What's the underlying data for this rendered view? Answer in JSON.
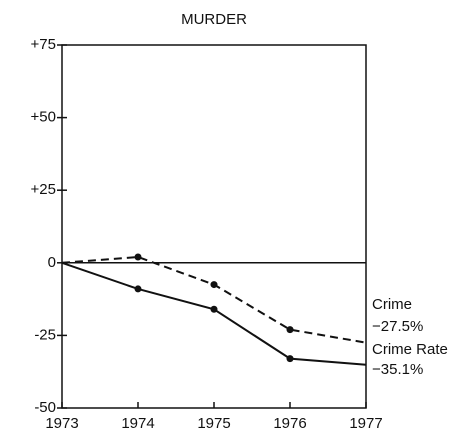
{
  "chart_data": {
    "type": "line",
    "title": "MURDER",
    "x": [
      1973,
      1974,
      1975,
      1976,
      1977
    ],
    "series": [
      {
        "name": "Crime",
        "color": "#111111",
        "dash": true,
        "values": [
          0,
          2,
          -7.5,
          -23,
          -27.5
        ],
        "value_labels": [
          null,
          null,
          null,
          null,
          "−27.5%"
        ]
      },
      {
        "name": "Crime Rate",
        "color": "#111111",
        "dash": false,
        "values": [
          0,
          -9,
          -16,
          -33,
          -35.1
        ],
        "value_labels": [
          null,
          null,
          null,
          null,
          "−35.1%"
        ]
      }
    ],
    "xlim": [
      1973,
      1977
    ],
    "xticks": [
      1973,
      1974,
      1975,
      1976,
      1977
    ],
    "ylim": [
      -50,
      75
    ],
    "yticks": [
      {
        "value": 75,
        "label": "+75"
      },
      {
        "value": 50,
        "label": "+50"
      },
      {
        "value": 25,
        "label": "+25"
      },
      0,
      -25,
      -50
    ]
  }
}
